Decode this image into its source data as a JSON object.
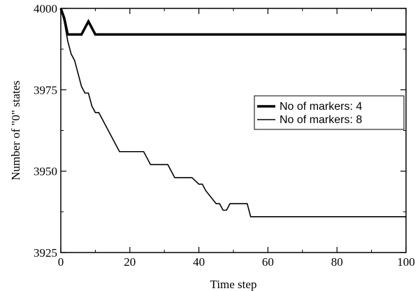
{
  "chart_data": {
    "type": "line",
    "title": "",
    "xlabel": "Time step",
    "ylabel": "Number of  \"0\"  states",
    "xlim": [
      0,
      100
    ],
    "ylim": [
      3925,
      4000
    ],
    "xticks": [
      0,
      20,
      40,
      60,
      80,
      100
    ],
    "yticks": [
      3925,
      3950,
      3975,
      4000
    ],
    "xtick_labels": [
      "0",
      "20",
      "40",
      "60",
      "80",
      "100"
    ],
    "ytick_labels": [
      "3925",
      "3950",
      "3975",
      "4000"
    ],
    "grid": false,
    "legend_position": "right",
    "series": [
      {
        "name": "No of markers: 4",
        "line_width": "thick",
        "color": "#000000",
        "x": [
          0,
          1,
          2,
          3,
          6,
          8,
          10,
          100
        ],
        "y": [
          4000,
          3997,
          3992,
          3992,
          3992,
          3996,
          3992,
          3992
        ]
      },
      {
        "name": "No of markers: 8",
        "line_width": "thin",
        "color": "#000000",
        "x": [
          0,
          1,
          2,
          3,
          4,
          5,
          6,
          7,
          8,
          9,
          10,
          11,
          17,
          24,
          26,
          30,
          31,
          33,
          38,
          40,
          41,
          42,
          45,
          46,
          47,
          48,
          49,
          52,
          54,
          55,
          100
        ],
        "y": [
          4000,
          3996,
          3990,
          3986,
          3984,
          3980,
          3976,
          3974,
          3974,
          3970,
          3968,
          3968,
          3956,
          3956,
          3952,
          3952,
          3952,
          3948,
          3948,
          3946,
          3946,
          3944,
          3940,
          3940,
          3938,
          3938,
          3940,
          3940,
          3940,
          3936,
          3936
        ]
      }
    ]
  }
}
